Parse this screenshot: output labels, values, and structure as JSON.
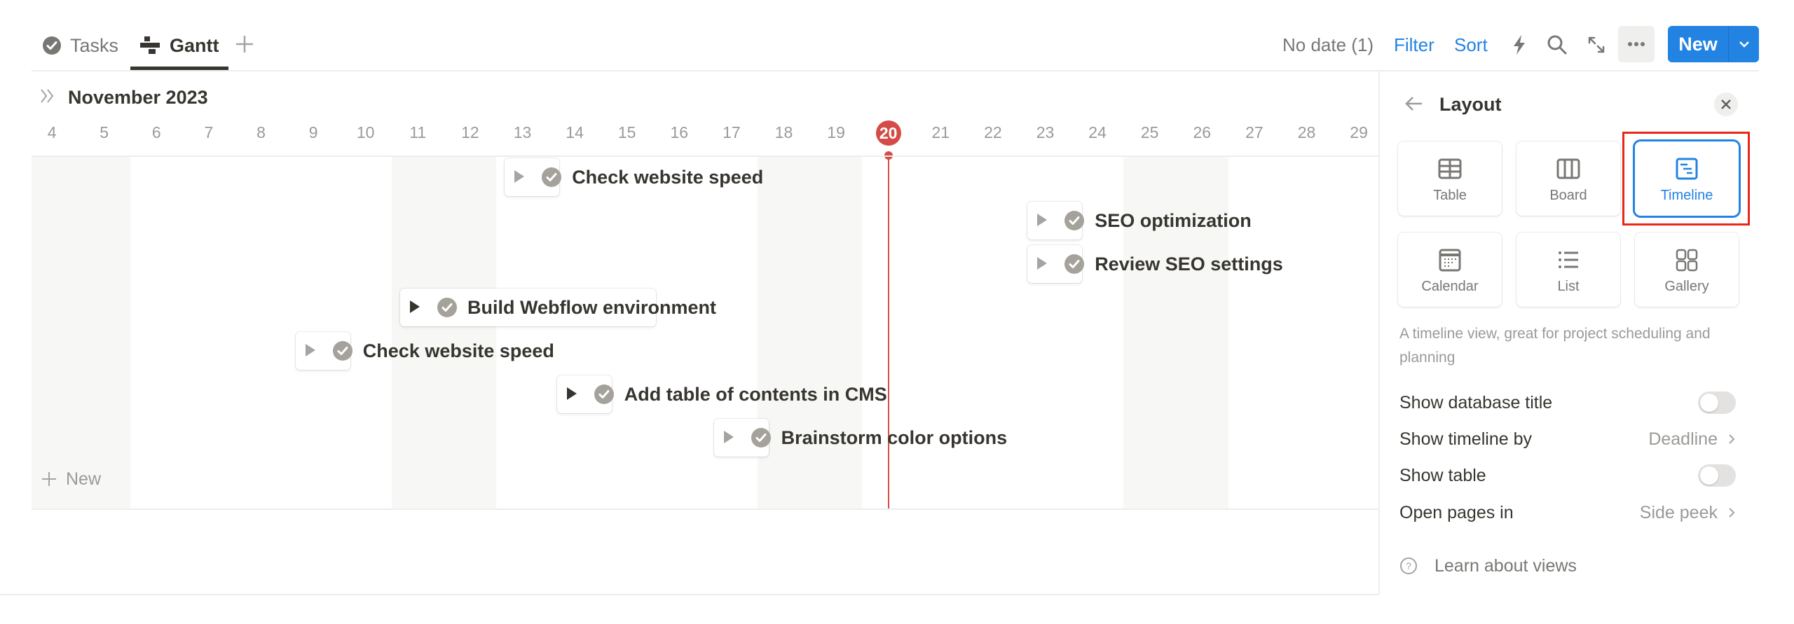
{
  "tabs": [
    {
      "label": "Tasks",
      "icon": "check-circle-icon",
      "active": false
    },
    {
      "label": "Gantt",
      "icon": "gantt-icon",
      "active": true
    }
  ],
  "add_view_icon": "plus-icon",
  "toolbar": {
    "no_date": "No date (1)",
    "filter": "Filter",
    "sort": "Sort",
    "icons": [
      "lightning-icon",
      "search-icon",
      "expand-icon",
      "more-icon"
    ],
    "new_label": "New"
  },
  "timeline": {
    "month": "November 2023",
    "days": [
      4,
      5,
      6,
      7,
      8,
      9,
      10,
      11,
      12,
      13,
      14,
      15,
      16,
      17,
      18,
      19,
      20,
      21,
      22,
      23,
      24,
      25,
      26,
      27,
      28,
      29
    ],
    "today": 20,
    "weekends": [
      4,
      5,
      11,
      12,
      18,
      19,
      25,
      26
    ],
    "tasks": [
      {
        "title": "Check website speed",
        "start": 13,
        "end": 13,
        "done": true
      },
      {
        "title": "SEO optimization",
        "start": 23,
        "end": 23,
        "done": true
      },
      {
        "title": "Review SEO settings",
        "start": 23,
        "end": 23,
        "done": true
      },
      {
        "title": "Build Webflow environment",
        "start": 11,
        "end": 15,
        "done": true,
        "expanded_arrow_dark": true
      },
      {
        "title": "Check website speed",
        "start": 9,
        "end": 9,
        "done": true
      },
      {
        "title": "Add table of contents in CMS",
        "start": 14,
        "end": 14,
        "done": true,
        "expanded_arrow_dark": true
      },
      {
        "title": "Brainstorm color options",
        "start": 17,
        "end": 17,
        "done": true
      }
    ],
    "new_label": "New"
  },
  "panel": {
    "title": "Layout",
    "layouts": [
      {
        "label": "Table",
        "icon": "table-icon",
        "selected": false
      },
      {
        "label": "Board",
        "icon": "board-icon",
        "selected": false
      },
      {
        "label": "Timeline",
        "icon": "timeline-icon",
        "selected": true
      },
      {
        "label": "Calendar",
        "icon": "calendar-icon",
        "selected": false
      },
      {
        "label": "List",
        "icon": "list-icon",
        "selected": false
      },
      {
        "label": "Gallery",
        "icon": "gallery-icon",
        "selected": false
      }
    ],
    "description": "A timeline view, great for project scheduling and planning",
    "settings": {
      "show_database_title": {
        "label": "Show database title",
        "on": false
      },
      "show_timeline_by": {
        "label": "Show timeline by",
        "value": "Deadline"
      },
      "show_table": {
        "label": "Show table",
        "on": false
      },
      "open_pages_in": {
        "label": "Open pages in",
        "value": "Side peek"
      }
    },
    "learn": "Learn about views"
  },
  "colors": {
    "accent": "#2383e2",
    "today": "#d44c47",
    "highlight_box": "#e8271a",
    "weekend": "#f7f7f5"
  }
}
